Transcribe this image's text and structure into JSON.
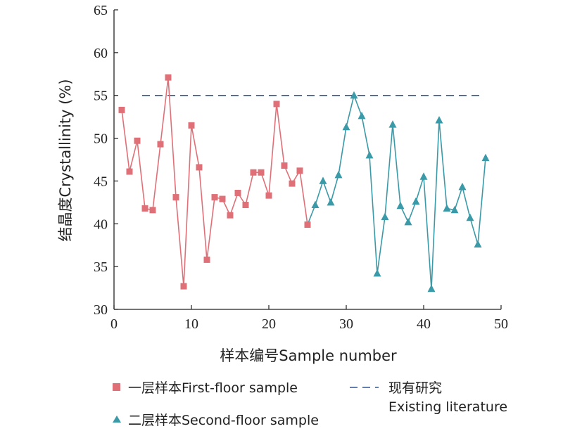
{
  "chart_data": {
    "type": "line",
    "xlabel": "样本编号Sample number",
    "ylabel": "结晶度Crystallinity (%)",
    "xlim": [
      0,
      50
    ],
    "ylim": [
      30,
      65
    ],
    "xticks": [
      "0",
      "10",
      "20",
      "30",
      "40",
      "50"
    ],
    "yticks": [
      "30",
      "35",
      "40",
      "45",
      "50",
      "55",
      "60",
      "65"
    ],
    "series": [
      {
        "name": "一层样本First-floor sample",
        "color": "#e07078",
        "marker": "square",
        "x": [
          1,
          2,
          3,
          4,
          5,
          6,
          7,
          8,
          9,
          10,
          11,
          12,
          13,
          14,
          15,
          16,
          17,
          18,
          19,
          20,
          21,
          22,
          23,
          24,
          25
        ],
        "y": [
          53.3,
          46.1,
          49.7,
          41.8,
          41.6,
          49.3,
          57.1,
          43.1,
          32.7,
          51.5,
          46.6,
          35.8,
          43.1,
          42.9,
          41.0,
          43.6,
          42.2,
          46.0,
          46.0,
          43.3,
          54.0,
          46.8,
          44.7,
          46.2,
          39.9
        ]
      },
      {
        "name": "二层样本Second-floor sample",
        "color": "#3a9aa8",
        "marker": "triangle",
        "x": [
          25,
          26,
          27,
          28,
          29,
          30,
          31,
          32,
          33,
          34,
          35,
          36,
          37,
          38,
          39,
          40,
          41,
          42,
          43,
          44,
          45,
          46,
          47,
          48
        ],
        "y": [
          39.9,
          42.2,
          45.0,
          42.5,
          45.7,
          51.3,
          55.0,
          52.6,
          48.0,
          34.2,
          40.8,
          51.6,
          42.1,
          40.2,
          42.6,
          45.5,
          32.4,
          52.1,
          41.8,
          41.6,
          44.3,
          40.7,
          37.6,
          47.7
        ]
      }
    ],
    "reference_line": {
      "name": "现有研究 Existing literature",
      "y": 55,
      "color": "#2f5597",
      "style": "dashed"
    },
    "legend": {
      "placement": "bottom",
      "items": [
        {
          "line1": "一层样本First-floor sample",
          "line2": ""
        },
        {
          "line1": "现有研究",
          "line2": "Existing literature"
        },
        {
          "line1": "二层样本Second-floor sample",
          "line2": ""
        }
      ]
    },
    "grid": false
  }
}
